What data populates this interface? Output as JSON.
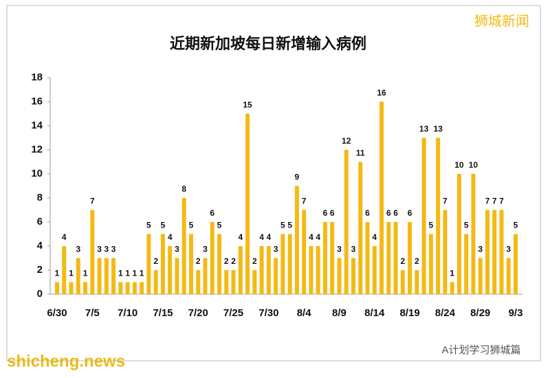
{
  "chart_data": {
    "type": "bar",
    "title": "近期新加坡每日新增输入病例",
    "categories": [
      "6/30",
      null,
      null,
      null,
      null,
      "7/5",
      null,
      null,
      null,
      null,
      "7/10",
      null,
      null,
      null,
      null,
      "7/15",
      null,
      null,
      null,
      null,
      "7/20",
      null,
      null,
      null,
      null,
      "7/25",
      null,
      null,
      null,
      null,
      "7/30",
      null,
      null,
      null,
      null,
      "8/4",
      null,
      null,
      null,
      null,
      "8/9",
      null,
      null,
      null,
      null,
      "8/14",
      null,
      null,
      null,
      null,
      "8/19",
      null,
      null,
      null,
      null,
      "8/24",
      null,
      null,
      null,
      null,
      "8/29",
      null,
      null,
      null,
      null,
      "9/3"
    ],
    "values": [
      1,
      4,
      1,
      3,
      1,
      7,
      3,
      3,
      3,
      1,
      1,
      1,
      1,
      5,
      2,
      5,
      4,
      3,
      8,
      5,
      2,
      3,
      6,
      5,
      2,
      2,
      4,
      15,
      2,
      4,
      4,
      3,
      5,
      5,
      9,
      7,
      4,
      4,
      6,
      6,
      3,
      12,
      3,
      11,
      6,
      4,
      16,
      6,
      6,
      2,
      6,
      2,
      13,
      5,
      13,
      7,
      1,
      10,
      5,
      10,
      3,
      7,
      7,
      7,
      3,
      5
    ],
    "color": "#f4b914",
    "ylim": [
      0,
      18
    ],
    "yticks": [
      0,
      2,
      4,
      6,
      8,
      10,
      12,
      14,
      16,
      18
    ],
    "grid": false
  },
  "watermarks": {
    "top_right": "狮城新闻",
    "bottom_left": "shicheng.news",
    "bottom_right": "A计划学习狮城篇"
  }
}
